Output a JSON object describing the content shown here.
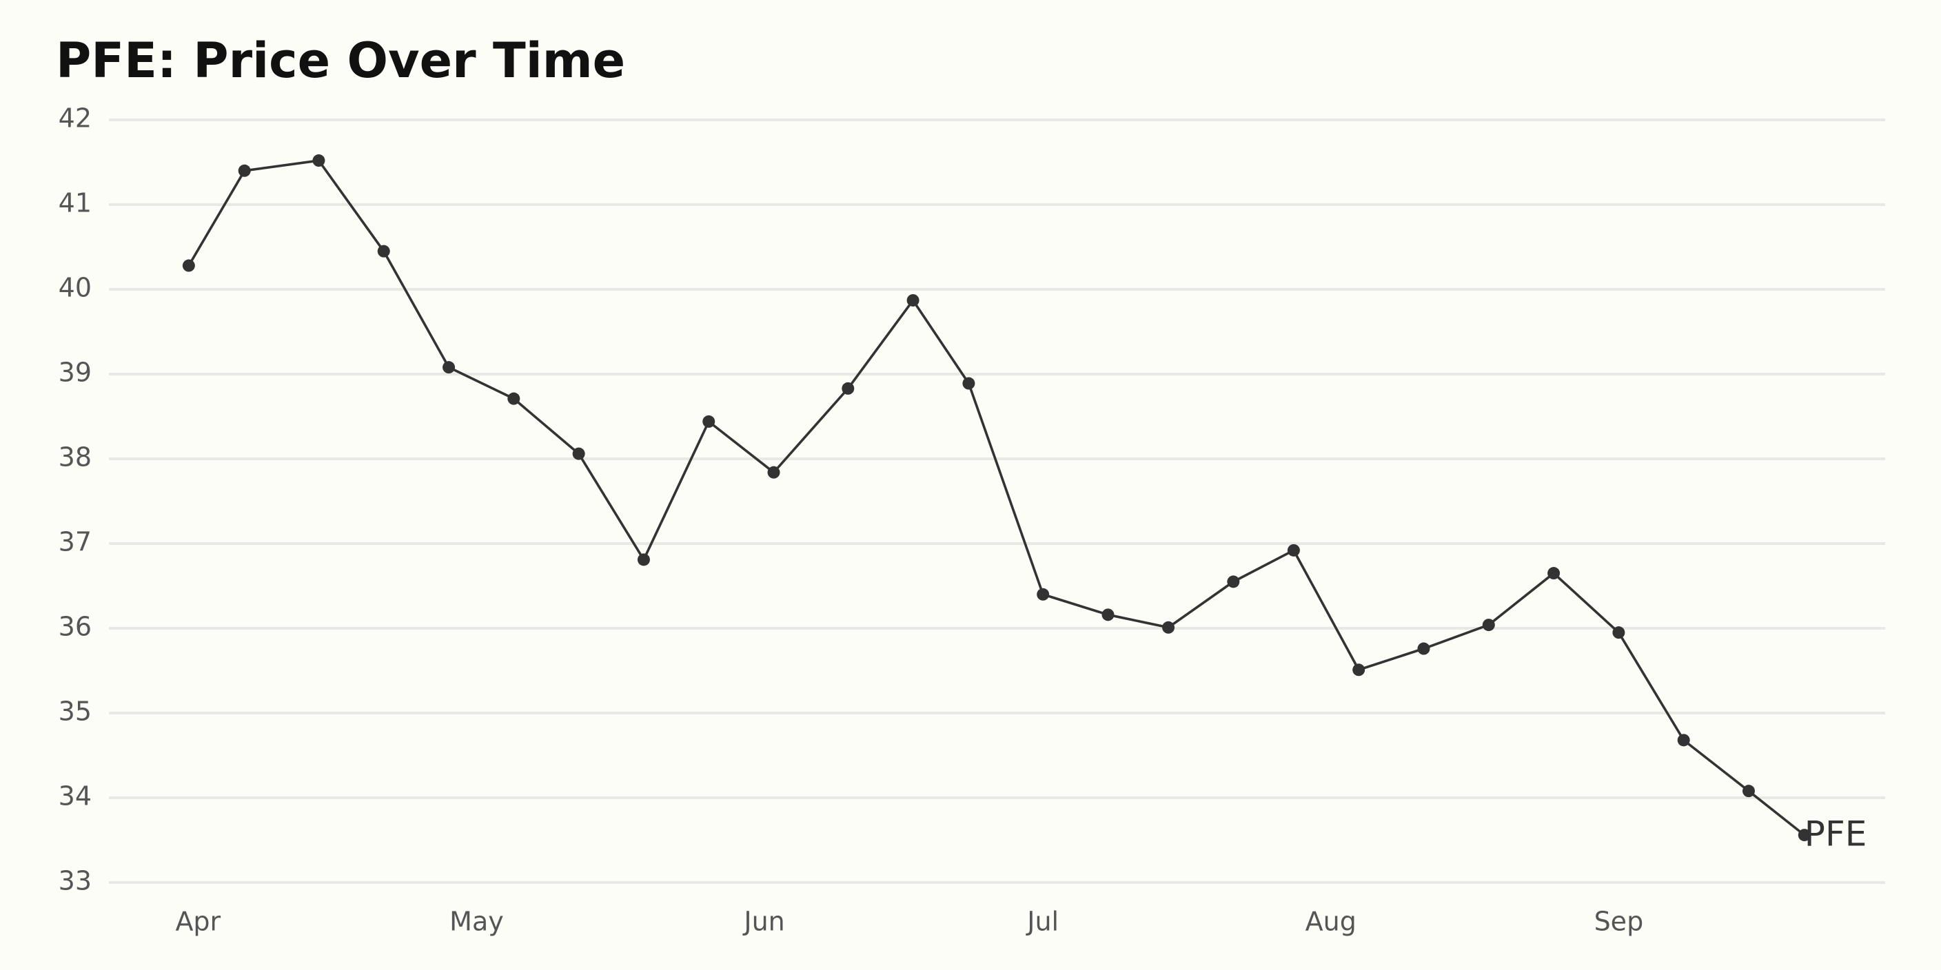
{
  "chart_data": {
    "type": "line",
    "title": "PFE: Price Over Time",
    "x": [
      -1,
      5,
      13,
      20,
      27,
      34,
      41,
      48,
      55,
      62,
      70,
      77,
      83,
      91,
      98,
      104.5,
      111.5,
      118,
      125,
      132,
      139,
      146,
      153,
      160,
      167,
      173
    ],
    "series": [
      {
        "name": "PFE",
        "color": "#333333",
        "values": [
          40.28,
          41.4,
          41.52,
          40.45,
          39.08,
          38.71,
          38.06,
          36.81,
          38.44,
          37.84,
          38.83,
          39.87,
          38.89,
          36.4,
          36.16,
          36.01,
          36.55,
          36.92,
          35.51,
          35.76,
          36.04,
          36.65,
          35.95,
          34.68,
          34.08,
          33.56
        ]
      }
    ],
    "xlim": [
      -9.6,
      181.7
    ],
    "xticks": [
      {
        "value": 0,
        "label": "Apr"
      },
      {
        "value": 30,
        "label": "May"
      },
      {
        "value": 61,
        "label": "Jun"
      },
      {
        "value": 91,
        "label": "Jul"
      },
      {
        "value": 122,
        "label": "Aug"
      },
      {
        "value": 153,
        "label": "Sep"
      }
    ],
    "ylim": [
      33,
      42
    ],
    "yticks": [
      33,
      34,
      35,
      36,
      37,
      38,
      39,
      40,
      41,
      42
    ],
    "grid": true
  }
}
